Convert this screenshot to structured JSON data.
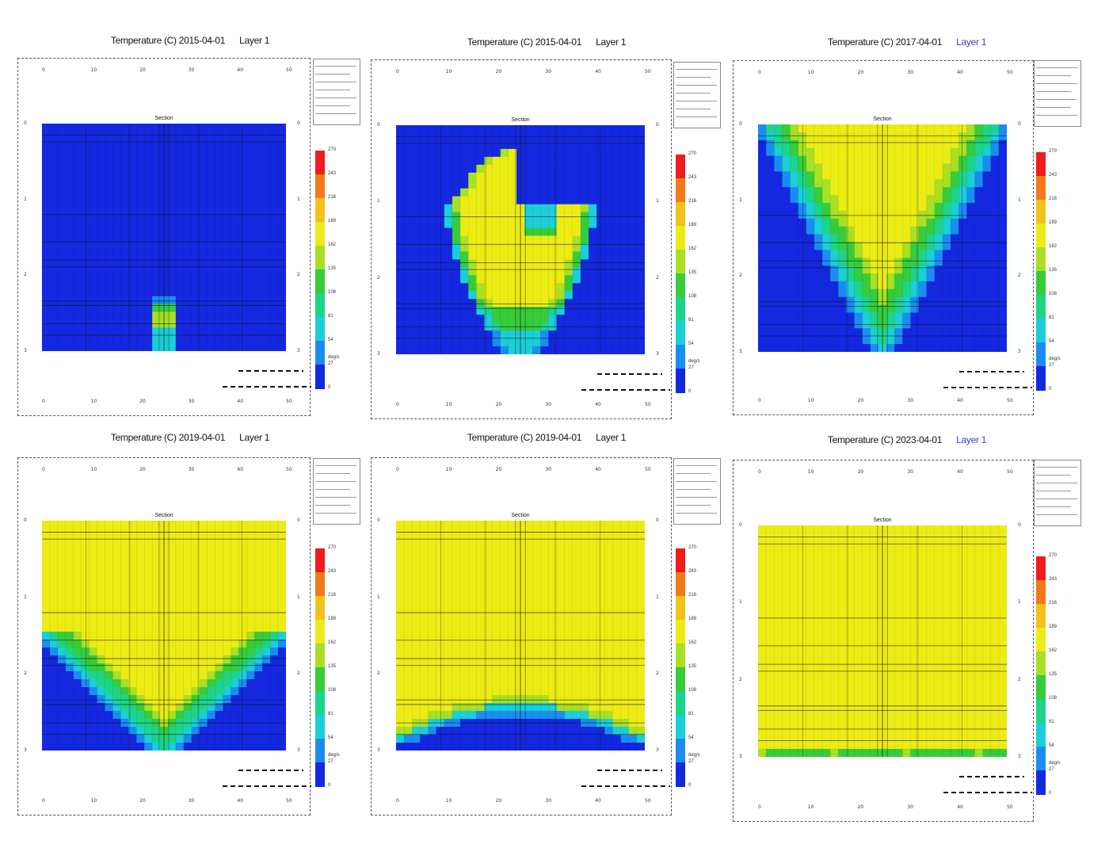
{
  "panels": [
    {
      "title": "Temperature (C) 2015-04-01",
      "layer": "Layer 1",
      "layer_accent": false,
      "x_ticks": [
        "0",
        "10",
        "20",
        "30",
        "40",
        "50"
      ],
      "y_ticks": [
        "0",
        "1",
        "2",
        "3"
      ],
      "section_label": "Section",
      "state": "seed"
    },
    {
      "title": "Temperature (C) 2015-04-01",
      "layer": "Layer 1",
      "layer_accent": false,
      "x_ticks": [
        "0",
        "10",
        "20",
        "30",
        "40",
        "50"
      ],
      "y_ticks": [
        "0",
        "1",
        "2",
        "3"
      ],
      "section_label": "Section",
      "state": "bulb"
    },
    {
      "title": "Temperature (C) 2017-04-01",
      "layer": "Layer 1",
      "layer_accent": true,
      "x_ticks": [
        "0",
        "10",
        "20",
        "30",
        "40",
        "50"
      ],
      "y_ticks": [
        "0",
        "1",
        "2",
        "3"
      ],
      "section_label": "Section",
      "state": "vee_top"
    },
    {
      "title": "Temperature (C) 2019-04-01",
      "layer": "Layer 1",
      "layer_accent": false,
      "x_ticks": [
        "0",
        "10",
        "20",
        "30",
        "40",
        "50"
      ],
      "y_ticks": [
        "0",
        "1",
        "2",
        "3"
      ],
      "section_label": "Section",
      "state": "vee_low"
    },
    {
      "title": "Temperature (C) 2019-04-01",
      "layer": "Layer 1",
      "layer_accent": false,
      "x_ticks": [
        "0",
        "10",
        "20",
        "30",
        "40",
        "50"
      ],
      "y_ticks": [
        "0",
        "1",
        "2",
        "3"
      ],
      "section_label": "Section",
      "state": "bowl"
    },
    {
      "title": "Temperature (C) 2023-04-01",
      "layer": "Layer 1",
      "layer_accent": true,
      "x_ticks": [
        "0",
        "10",
        "20",
        "30",
        "40",
        "50"
      ],
      "y_ticks": [
        "0",
        "1",
        "2",
        "3"
      ],
      "section_label": "Section",
      "state": "full"
    }
  ],
  "colorbar": {
    "colors": [
      "#ee1c1c",
      "#f27a1a",
      "#f2c21a",
      "#ecec14",
      "#a8e024",
      "#36cc3a",
      "#1ed488",
      "#1acfd8",
      "#1a8ef0",
      "#1428e0"
    ],
    "labels": [
      "270",
      "243",
      "216",
      "189",
      "162",
      "135",
      "108",
      "81",
      "54",
      "27",
      "0"
    ],
    "unit": "deg/s"
  },
  "chart_data": [
    {
      "type": "heatmap",
      "title": "Temperature (C) 2015-04-01",
      "subtitle": "Layer 1",
      "xlabel": "",
      "ylabel": "",
      "x_ticks": [
        "0",
        "10",
        "20",
        "30",
        "40",
        "50"
      ],
      "y_ticks": [
        "0",
        "1",
        "2",
        "3"
      ],
      "grid": true,
      "colorbar_labels": [
        "270",
        "243",
        "216",
        "189",
        "162",
        "135",
        "108",
        "81",
        "54",
        "27",
        "0"
      ],
      "regions": [
        {
          "color": "#ecec14",
          "shape": "small hot spot near bottom centre"
        },
        {
          "color": "#1428e0",
          "shape": "background"
        }
      ]
    },
    {
      "type": "heatmap",
      "title": "Temperature (C) 2015-04-01",
      "subtitle": "Layer 1",
      "xlabel": "",
      "ylabel": "",
      "x_ticks": [
        "0",
        "10",
        "20",
        "30",
        "40",
        "50"
      ],
      "y_ticks": [
        "0",
        "1",
        "2",
        "3"
      ],
      "grid": true,
      "colorbar_labels": [
        "270",
        "243",
        "216",
        "189",
        "162",
        "135",
        "108",
        "81",
        "54",
        "27",
        "0"
      ],
      "regions": [
        {
          "color": "#ecec14",
          "shape": "bulb shaped plume from bottom centre"
        },
        {
          "color": "#1428e0",
          "shape": "background"
        }
      ]
    },
    {
      "type": "heatmap",
      "title": "Temperature (C) 2017-04-01",
      "subtitle": "Layer 1",
      "xlabel": "",
      "ylabel": "",
      "x_ticks": [
        "0",
        "10",
        "20",
        "30",
        "40",
        "50"
      ],
      "y_ticks": [
        "0",
        "1",
        "2",
        "3"
      ],
      "grid": true,
      "colorbar_labels": [
        "270",
        "243",
        "216",
        "189",
        "162",
        "135",
        "108",
        "81",
        "54",
        "27",
        "0"
      ],
      "regions": [
        {
          "color": "#ecec14",
          "shape": "V-shaped plume reaching top edge"
        },
        {
          "color": "#1428e0",
          "shape": "side corners"
        }
      ]
    },
    {
      "type": "heatmap",
      "title": "Temperature (C) 2019-04-01",
      "subtitle": "Layer 1",
      "xlabel": "",
      "ylabel": "",
      "x_ticks": [
        "0",
        "10",
        "20",
        "30",
        "40",
        "50"
      ],
      "y_ticks": [
        "0",
        "1",
        "2",
        "3"
      ],
      "grid": true,
      "colorbar_labels": [
        "270",
        "243",
        "216",
        "189",
        "162",
        "135",
        "108",
        "81",
        "54",
        "27",
        "0"
      ],
      "regions": [
        {
          "color": "#ecec14",
          "shape": "upper area with V-shaped lower boundary"
        },
        {
          "color": "#1428e0",
          "shape": "bottom corners"
        }
      ]
    },
    {
      "type": "heatmap",
      "title": "Temperature (C) 2019-04-01",
      "subtitle": "Layer 1",
      "xlabel": "",
      "ylabel": "",
      "x_ticks": [
        "0",
        "10",
        "20",
        "30",
        "40",
        "50"
      ],
      "y_ticks": [
        "0",
        "1",
        "2",
        "3"
      ],
      "grid": true,
      "colorbar_labels": [
        "270",
        "243",
        "216",
        "189",
        "162",
        "135",
        "108",
        "81",
        "54",
        "27",
        "0"
      ],
      "regions": [
        {
          "color": "#ecec14",
          "shape": "nearly full section, blue bowl at bottom"
        },
        {
          "color": "#1428e0",
          "shape": "thin bottom band"
        }
      ]
    },
    {
      "type": "heatmap",
      "title": "Temperature (C) 2023-04-01",
      "subtitle": "Layer 1",
      "xlabel": "",
      "ylabel": "",
      "x_ticks": [
        "0",
        "10",
        "20",
        "30",
        "40",
        "50"
      ],
      "y_ticks": [
        "0",
        "1",
        "2",
        "3"
      ],
      "grid": true,
      "colorbar_labels": [
        "270",
        "243",
        "216",
        "189",
        "162",
        "135",
        "108",
        "81",
        "54",
        "27",
        "0"
      ],
      "regions": [
        {
          "color": "#ecec14",
          "shape": "entire section"
        },
        {
          "color": "#36cc3a",
          "shape": "thin bottom row"
        }
      ]
    }
  ]
}
